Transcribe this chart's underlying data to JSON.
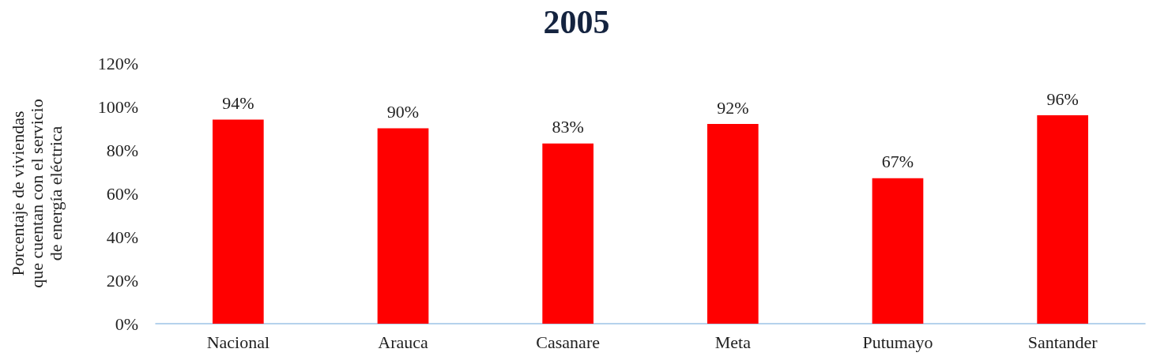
{
  "chart_data": {
    "type": "bar",
    "title": "2005",
    "ylabel": "Porcentaje de viviendas\nque cuentan con el servicio\nde energía eléctrica",
    "categories": [
      "Nacional",
      "Arauca",
      "Casanare",
      "Meta",
      "Putumayo",
      "Santander"
    ],
    "values": [
      94,
      90,
      83,
      92,
      67,
      96
    ],
    "value_labels": [
      "94%",
      "90%",
      "83%",
      "92%",
      "67%",
      "96%"
    ],
    "color": "#ff0000",
    "ylim": [
      0,
      120
    ],
    "yticks": [
      {
        "value": 0,
        "label": "0%"
      },
      {
        "value": 20,
        "label": "20%"
      },
      {
        "value": 40,
        "label": "40%"
      },
      {
        "value": 60,
        "label": "60%"
      },
      {
        "value": 80,
        "label": "80%"
      },
      {
        "value": 100,
        "label": "100%"
      },
      {
        "value": 120,
        "label": "120%"
      }
    ],
    "grid": false
  }
}
